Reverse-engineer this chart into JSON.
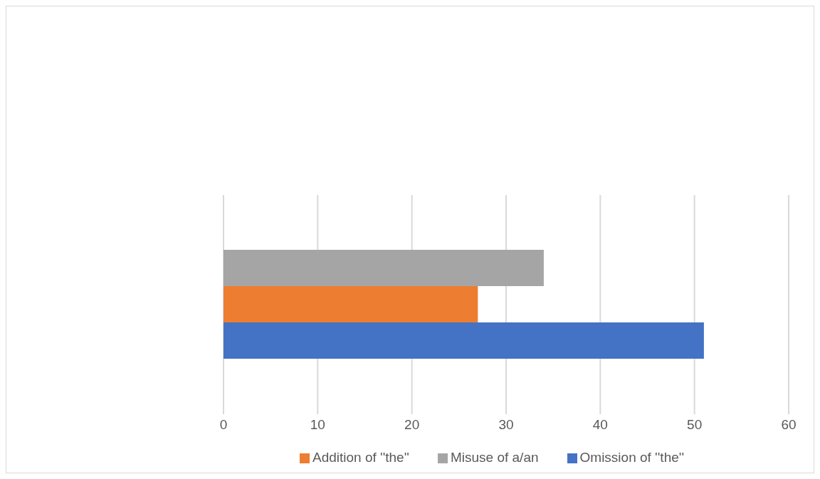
{
  "chart_data": {
    "type": "bar",
    "orientation": "horizontal",
    "categories": [
      null
    ],
    "series": [
      {
        "name": "Misuse of a/an",
        "color": "#a5a5a5",
        "values": [
          34
        ]
      },
      {
        "name": "Addition of ''the''",
        "color": "#ed7d31",
        "values": [
          27
        ]
      },
      {
        "name": "Omission of ''the''",
        "color": "#4472c4",
        "values": [
          51
        ]
      }
    ],
    "xlim": [
      0,
      60
    ],
    "xticks": [
      0,
      10,
      20,
      30,
      40,
      50,
      60
    ],
    "grid": "x",
    "legend": "bottom"
  }
}
